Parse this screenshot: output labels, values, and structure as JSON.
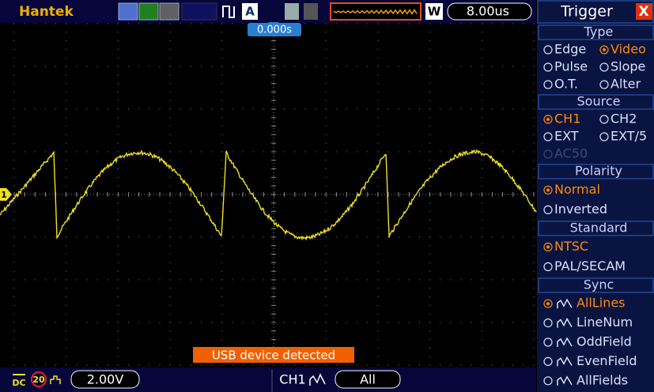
{
  "header": {
    "brand": "Hantek",
    "w_button": "W",
    "timebase": "8.00us"
  },
  "display": {
    "time_offset": "0.000s",
    "channel_marker": "1",
    "message": "USB device detected"
  },
  "footer": {
    "coupling": "DC",
    "bandwidth_limit": "20",
    "volts_per_div": "2.00V",
    "trigger_source": "CH1",
    "trigger_mode": "All"
  },
  "panel": {
    "title": "Trigger",
    "close": "X",
    "sections": [
      {
        "title": "Type",
        "rows": [
          [
            {
              "label": "Edge",
              "selected": false
            },
            {
              "label": "Video",
              "selected": true
            }
          ],
          [
            {
              "label": "Pulse",
              "selected": false
            },
            {
              "label": "Slope",
              "selected": false
            }
          ],
          [
            {
              "label": "O.T.",
              "selected": false
            },
            {
              "label": "Alter",
              "selected": false
            }
          ]
        ]
      },
      {
        "title": "Source",
        "rows": [
          [
            {
              "label": "CH1",
              "selected": true
            },
            {
              "label": "CH2",
              "selected": false
            }
          ],
          [
            {
              "label": "EXT",
              "selected": false
            },
            {
              "label": "EXT/5",
              "selected": false
            }
          ],
          [
            {
              "label": "AC50",
              "selected": false,
              "disabled": true
            }
          ]
        ]
      },
      {
        "title": "Polarity",
        "rows": [
          [
            {
              "label": "Normal",
              "selected": true
            }
          ],
          [
            {
              "label": "Inverted",
              "selected": false
            }
          ]
        ]
      },
      {
        "title": "Standard",
        "rows": [
          [
            {
              "label": "NTSC",
              "selected": true
            }
          ],
          [
            {
              "label": "PAL/SECAM",
              "selected": false
            }
          ]
        ]
      },
      {
        "title": "Sync",
        "rows": [
          [
            {
              "label": "AllLines",
              "selected": true
            }
          ],
          [
            {
              "label": "LineNum",
              "selected": false
            }
          ],
          [
            {
              "label": "OddField",
              "selected": false
            }
          ],
          [
            {
              "label": "EvenField",
              "selected": false
            }
          ],
          [
            {
              "label": "AllFields",
              "selected": false
            }
          ]
        ]
      }
    ]
  }
}
